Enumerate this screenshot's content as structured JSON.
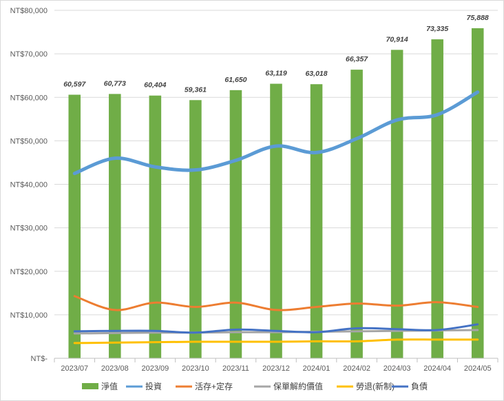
{
  "chart_data": {
    "type": "bar",
    "title": "",
    "xlabel": "",
    "ylabel": "",
    "ylim": [
      0,
      80000
    ],
    "yticks": [
      0,
      10000,
      20000,
      30000,
      40000,
      50000,
      60000,
      70000,
      80000
    ],
    "ytick_labels": [
      "NT$-",
      "NT$10,000",
      "NT$20,000",
      "NT$30,000",
      "NT$40,000",
      "NT$50,000",
      "NT$60,000",
      "NT$70,000",
      "NT$80,000"
    ],
    "categories": [
      "2023/07",
      "2023/08",
      "2023/09",
      "2023/10",
      "2023/11",
      "2023/12",
      "2024/01",
      "2024/02",
      "2024/03",
      "2024/04",
      "2024/05"
    ],
    "bar_series": {
      "name": "淨值",
      "color": "#70ad47",
      "values": [
        60597,
        60773,
        60404,
        59361,
        61650,
        63119,
        63018,
        66357,
        70914,
        73335,
        75888
      ],
      "labels": [
        "60,597",
        "60,773",
        "60,404",
        "59,361",
        "61,650",
        "63,119",
        "63,018",
        "66,357",
        "70,914",
        "73,335",
        "75,888"
      ]
    },
    "line_series": [
      {
        "name": "投資",
        "color": "#5b9bd5",
        "width": 5,
        "values": [
          42500,
          46000,
          44000,
          43300,
          45500,
          48800,
          47300,
          50500,
          54800,
          56000,
          61200
        ]
      },
      {
        "name": "活存+定存",
        "color": "#ed7d31",
        "width": 3,
        "values": [
          14300,
          11100,
          12800,
          11800,
          12800,
          11100,
          11800,
          12600,
          12100,
          12900,
          11800
        ]
      },
      {
        "name": "保單解約價值",
        "color": "#a5a5a5",
        "width": 3,
        "values": [
          5700,
          5800,
          5900,
          5900,
          6000,
          6000,
          6100,
          6200,
          6300,
          6400,
          6500
        ]
      },
      {
        "name": "勞退(新制)",
        "color": "#ffc000",
        "width": 3,
        "values": [
          3500,
          3600,
          3700,
          3800,
          3800,
          3800,
          3900,
          3900,
          4300,
          4300,
          4300
        ]
      },
      {
        "name": "負債",
        "color": "#4472c4",
        "width": 3,
        "values": [
          6200,
          6300,
          6300,
          5900,
          6600,
          6300,
          6000,
          6900,
          6700,
          6500,
          7800
        ]
      }
    ],
    "legend": {
      "position": "bottom",
      "entries": [
        "淨值",
        "投資",
        "活存+定存",
        "保單解約價值",
        "勞退(新制)",
        "負債"
      ]
    },
    "grid": true
  }
}
